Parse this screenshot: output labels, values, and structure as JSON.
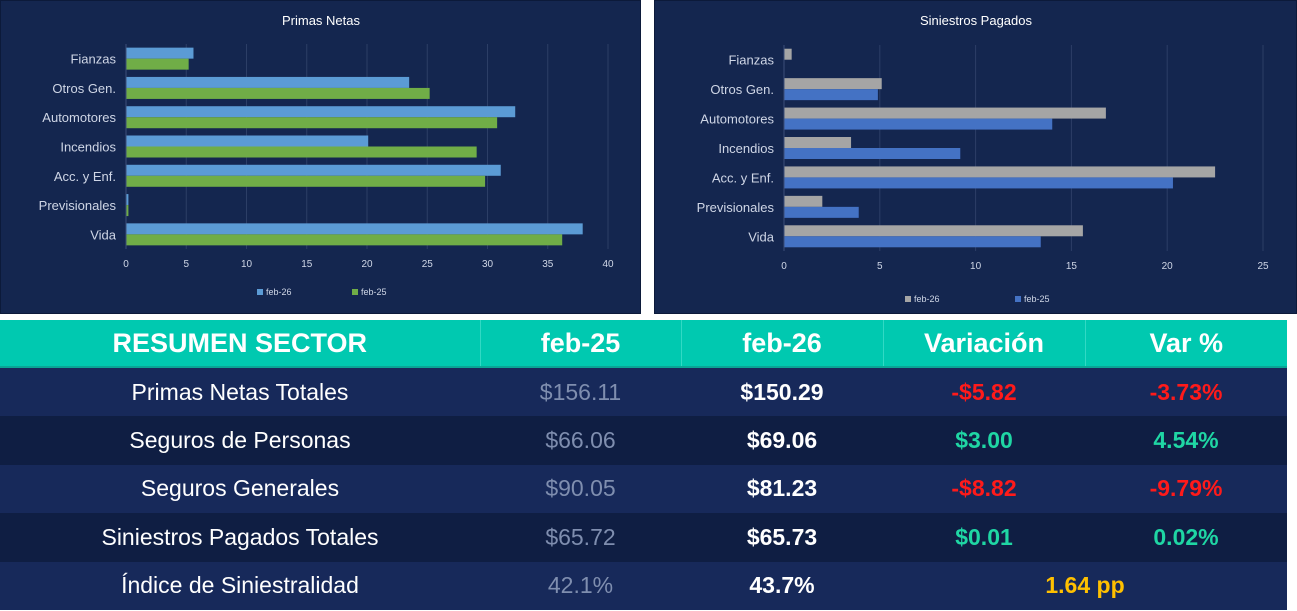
{
  "chart_data": [
    {
      "type": "bar",
      "orientation": "horizontal",
      "title": "Primas Netas",
      "categories": [
        "Fianzas",
        "Otros Gen.",
        "Automotores",
        "Incendios",
        "Acc. y Enf.",
        "Previsionales",
        "Vida"
      ],
      "series": [
        {
          "name": "feb-26",
          "color": "#5b9bd5",
          "values": [
            5.6,
            23.5,
            32.3,
            20.1,
            31.1,
            0.2,
            37.9
          ]
        },
        {
          "name": "feb-25",
          "color": "#70ad47",
          "values": [
            5.2,
            25.2,
            30.8,
            29.1,
            29.8,
            0.2,
            36.2
          ]
        }
      ],
      "xlim": [
        0,
        40
      ],
      "xticks": [
        "0",
        "5",
        "10",
        "15",
        "20",
        "25",
        "30",
        "35",
        "40"
      ],
      "grid": true,
      "legend": "bottom"
    },
    {
      "type": "bar",
      "orientation": "horizontal",
      "title": "Siniestros Pagados",
      "categories": [
        "Fianzas",
        "Otros Gen.",
        "Automotores",
        "Incendios",
        "Acc. y Enf.",
        "Previsionales",
        "Vida"
      ],
      "series": [
        {
          "name": "feb-26",
          "color": "#a5a5a5",
          "values": [
            0.4,
            5.1,
            16.8,
            3.5,
            22.5,
            2.0,
            15.6
          ]
        },
        {
          "name": "feb-25",
          "color": "#4472c4",
          "values": [
            0.0,
            4.9,
            14.0,
            9.2,
            20.3,
            3.9,
            13.4
          ]
        }
      ],
      "xlim": [
        0,
        25
      ],
      "xticks": [
        "0",
        "5",
        "10",
        "15",
        "20",
        "25"
      ],
      "grid": true,
      "legend": "bottom"
    }
  ],
  "summary": {
    "headers": [
      "RESUMEN SECTOR",
      "feb-25",
      "feb-26",
      "Variación",
      "Var %"
    ],
    "rows": [
      {
        "label": "Primas Netas Totales",
        "prev": "$156.11",
        "curr": "$150.29",
        "var": "-$5.82",
        "pct": "-3.73%",
        "trend": "neg"
      },
      {
        "label": "Seguros de Personas",
        "prev": "$66.06",
        "curr": "$69.06",
        "var": "$3.00",
        "pct": "4.54%",
        "trend": "pos"
      },
      {
        "label": "Seguros Generales",
        "prev": "$90.05",
        "curr": "$81.23",
        "var": "-$8.82",
        "pct": "-9.79%",
        "trend": "neg"
      },
      {
        "label": "Siniestros Pagados Totales",
        "prev": "$65.72",
        "curr": "$65.73",
        "var": "$0.01",
        "pct": "0.02%",
        "trend": "pos"
      }
    ],
    "index_row": {
      "label": "Índice de Siniestralidad",
      "prev": "42.1%",
      "curr": "43.7%",
      "var": "1.64 pp"
    }
  }
}
